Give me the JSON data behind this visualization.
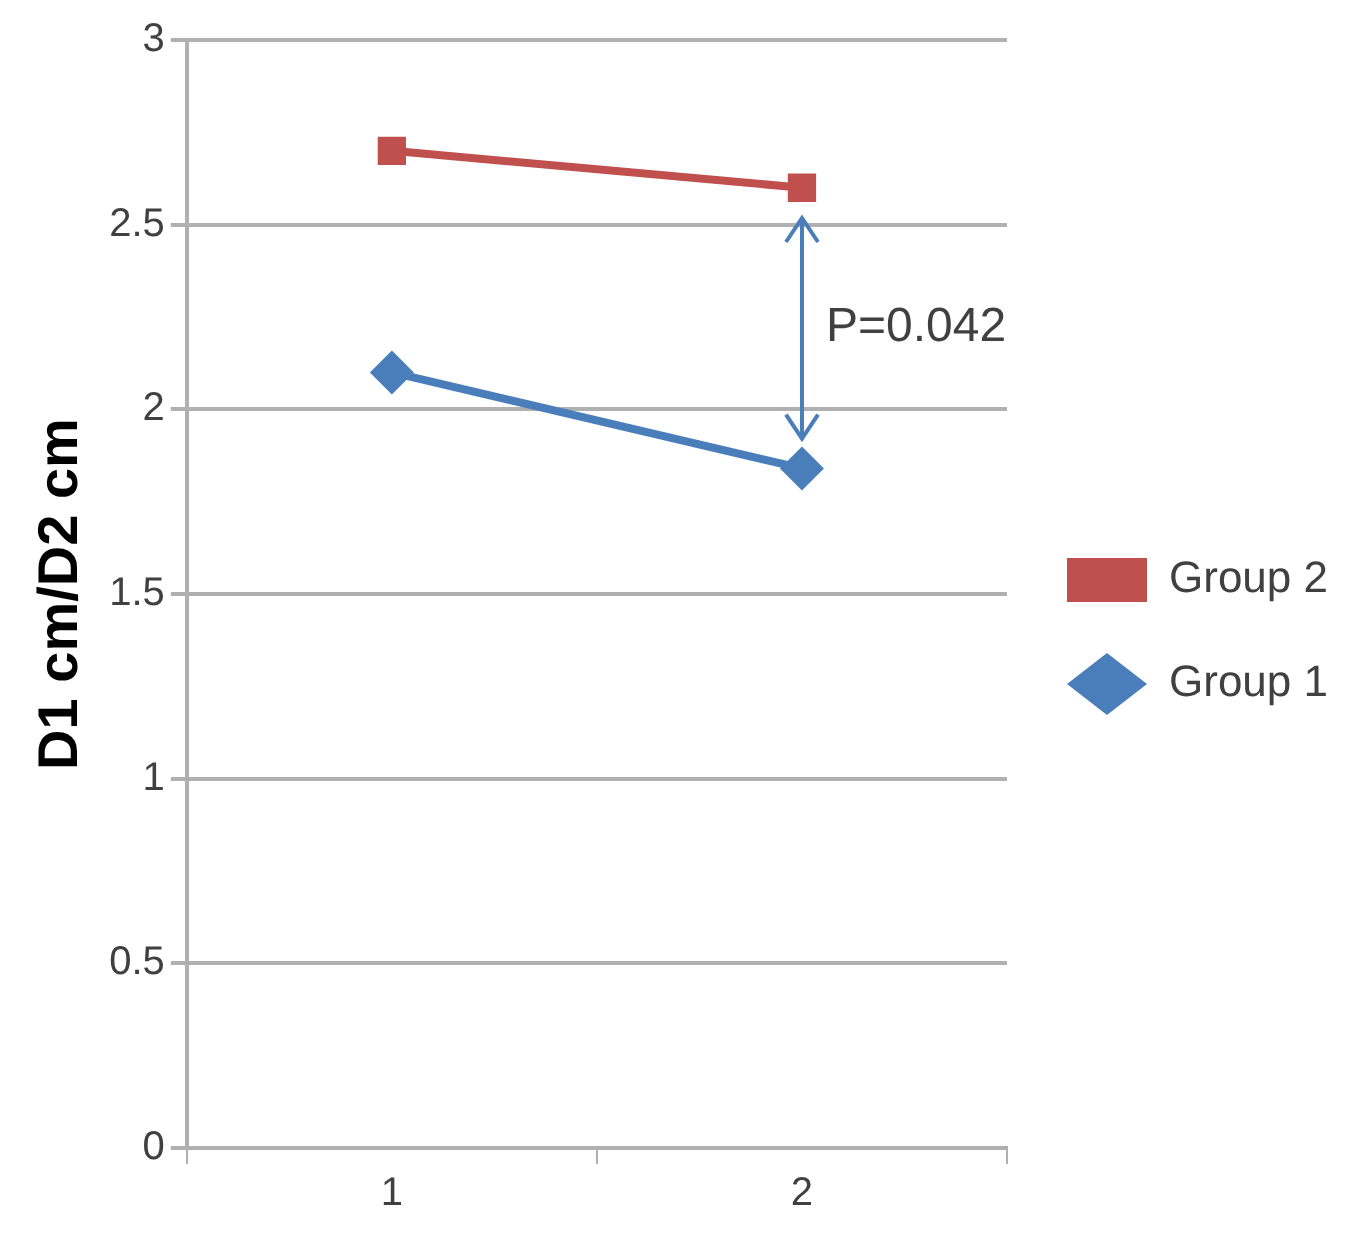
{
  "chart_data": {
    "type": "line",
    "ylabel": "D1 cm/D2 cm",
    "categories": [
      "1",
      "2"
    ],
    "series": [
      {
        "name": "Group 2",
        "color": "#c0504d",
        "values": [
          2.7,
          2.6
        ],
        "marker": "square"
      },
      {
        "name": "Group 1",
        "color": "#4a7ebb",
        "values": [
          2.1,
          1.84
        ],
        "marker": "diamond"
      }
    ],
    "ylim": [
      0,
      3
    ],
    "yticks": [
      0,
      0.5,
      1,
      1.5,
      2,
      2.5,
      3
    ],
    "grid": "y",
    "legend": "right",
    "annotations": [
      "P=0.042"
    ]
  }
}
